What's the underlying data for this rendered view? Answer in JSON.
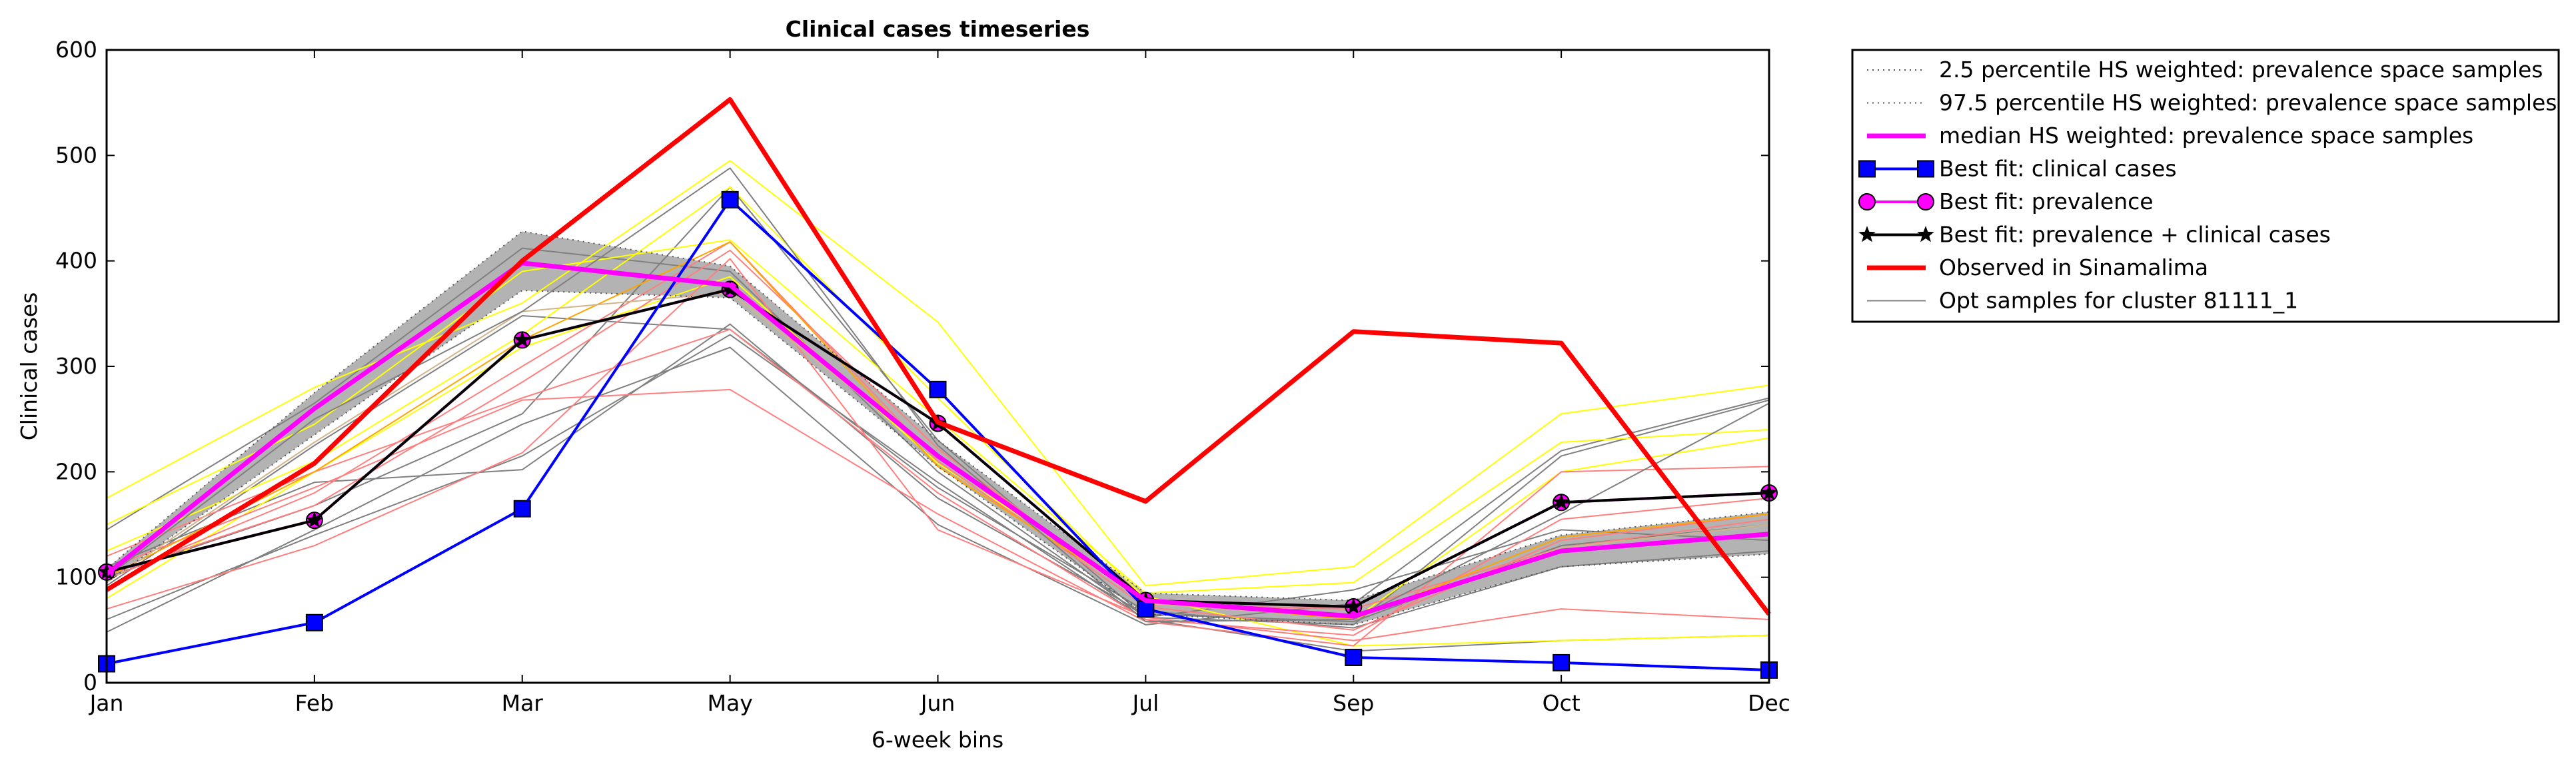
{
  "chart_data": {
    "type": "line",
    "title": "Clinical cases timeseries",
    "xlabel": "6-week bins",
    "ylabel": "Clinical cases",
    "categories": [
      "Jan",
      "Feb",
      "Mar",
      "May",
      "Jun",
      "Jul",
      "Sep",
      "Oct",
      "Dec"
    ],
    "ylim": [
      0,
      600
    ],
    "yticks": [
      "0",
      "100",
      "200",
      "300",
      "400",
      "500",
      "600"
    ],
    "grid": false,
    "legend_position": "outside-right-top",
    "band": {
      "lower": [
        95,
        235,
        372,
        365,
        205,
        65,
        55,
        110,
        122
      ],
      "upper": [
        108,
        275,
        428,
        395,
        230,
        85,
        78,
        140,
        162
      ],
      "color": "#b3b3b3"
    },
    "series": [
      {
        "name": "2.5 percentile HS weighted: prevalence space samples",
        "style": "dotted",
        "color": "#555555",
        "values": [
          95,
          235,
          372,
          365,
          205,
          65,
          55,
          110,
          122
        ]
      },
      {
        "name": "97.5 percentile HS weighted: prevalence space samples",
        "style": "dotted",
        "color": "#555555",
        "values": [
          108,
          275,
          428,
          395,
          230,
          85,
          78,
          140,
          162
        ]
      },
      {
        "name": "median HS weighted: prevalence space samples",
        "style": "solid-thick",
        "color": "#ff00ff",
        "values": [
          103,
          260,
          398,
          377,
          215,
          78,
          63,
          125,
          141
        ]
      },
      {
        "name": "Best fit: clinical cases",
        "style": "line-square",
        "color": "#0000ff",
        "values": [
          18,
          57,
          165,
          458,
          278,
          70,
          24,
          19,
          12
        ]
      },
      {
        "name": "Best fit: prevalence",
        "style": "line-circle",
        "color": "#ff00ff",
        "values": [
          105,
          154,
          325,
          373,
          246,
          78,
          72,
          171,
          180
        ]
      },
      {
        "name": "Best fit: prevalence + clinical cases",
        "style": "line-star",
        "color": "#000000",
        "values": [
          105,
          154,
          325,
          373,
          246,
          78,
          72,
          171,
          180
        ]
      },
      {
        "name": "Observed in Sinamalima",
        "style": "solid-thick",
        "color": "#ff0000",
        "values": [
          88,
          208,
          400,
          553,
          247,
          172,
          333,
          322,
          65
        ]
      },
      {
        "name": "Opt samples for cluster 81111_1",
        "style": "thin",
        "color": "#808080",
        "values": [
          100,
          250,
          352,
          488,
          225,
          58,
          60,
          160,
          265
        ]
      }
    ],
    "background_samples": [
      {
        "color": "#808080",
        "values": [
          145,
          265,
          412,
          390,
          200,
          62,
          55,
          215,
          268
        ]
      },
      {
        "color": "#808080",
        "values": [
          48,
          145,
          245,
          318,
          150,
          55,
          75,
          220,
          270
        ]
      },
      {
        "color": "#808080",
        "values": [
          110,
          190,
          202,
          340,
          175,
          65,
          58,
          130,
          150
        ]
      },
      {
        "color": "#808080",
        "values": [
          92,
          225,
          348,
          335,
          185,
          68,
          52,
          110,
          125
        ]
      },
      {
        "color": "#808080",
        "values": [
          100,
          168,
          255,
          470,
          230,
          62,
          88,
          145,
          135
        ]
      },
      {
        "color": "#808080",
        "values": [
          60,
          140,
          215,
          330,
          190,
          60,
          30,
          40,
          45
        ]
      },
      {
        "color": "#ffff00",
        "values": [
          175,
          280,
          360,
          495,
          342,
          92,
          110,
          255,
          282
        ]
      },
      {
        "color": "#ffff00",
        "values": [
          150,
          245,
          390,
          420,
          250,
          85,
          95,
          228,
          240
        ]
      },
      {
        "color": "#ffff00",
        "values": [
          125,
          210,
          330,
          470,
          270,
          80,
          60,
          200,
          232
        ]
      },
      {
        "color": "#ffff00",
        "values": [
          80,
          200,
          318,
          385,
          208,
          82,
          35,
          40,
          45
        ]
      },
      {
        "color": "#ff7f7f",
        "values": [
          70,
          130,
          218,
          402,
          145,
          62,
          40,
          70,
          60
        ]
      },
      {
        "color": "#ff7f7f",
        "values": [
          108,
          185,
          268,
          278,
          160,
          58,
          35,
          200,
          205
        ]
      },
      {
        "color": "#ff7f7f",
        "values": [
          98,
          180,
          300,
          418,
          210,
          72,
          50,
          135,
          160
        ]
      },
      {
        "color": "#ff7f7f",
        "values": [
          120,
          200,
          270,
          335,
          180,
          60,
          45,
          155,
          175
        ]
      },
      {
        "color": "#ff7f7f",
        "values": [
          102,
          168,
          285,
          410,
          222,
          74,
          70,
          128,
          155
        ]
      },
      {
        "color": "#ffa500",
        "values": [
          100,
          200,
          325,
          418,
          205,
          78,
          60,
          138,
          160
        ]
      },
      {
        "color": "#d2b48c",
        "values": [
          95,
          228,
          352,
          370,
          215,
          75,
          62,
          128,
          150
        ]
      }
    ]
  }
}
